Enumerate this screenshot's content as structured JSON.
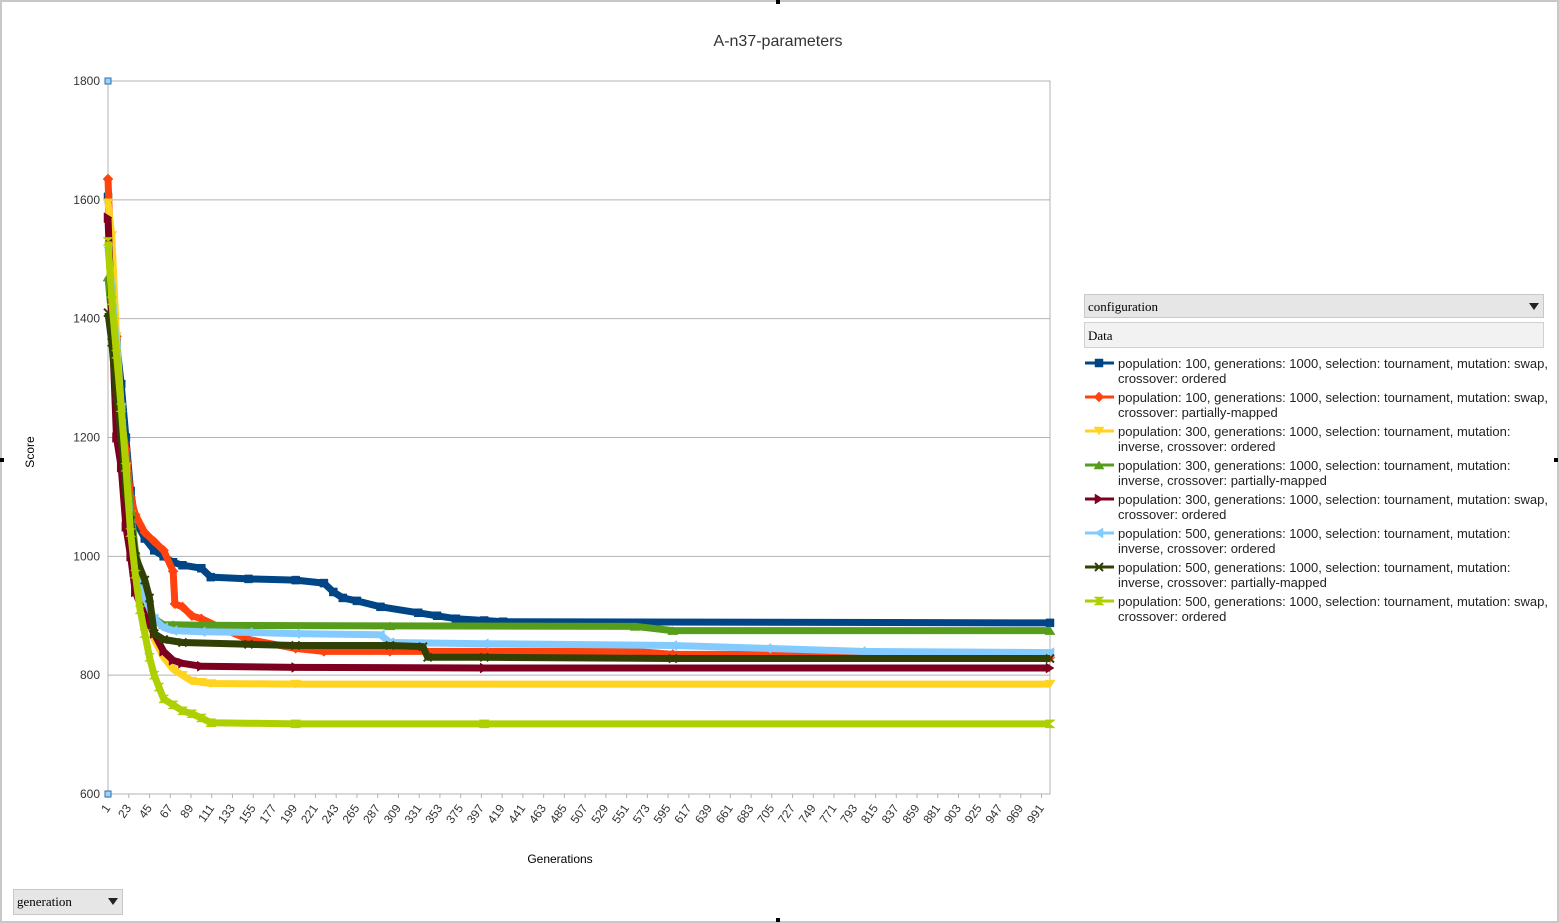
{
  "chart_data": {
    "type": "line",
    "title": "A-n37-parameters",
    "xlabel": "Generations",
    "ylabel": "Score",
    "ylim": [
      600,
      1800
    ],
    "yticks": [
      600,
      800,
      1000,
      1200,
      1400,
      1600,
      1800
    ],
    "xlim": [
      1,
      1000
    ],
    "xticks": [
      1,
      23,
      45,
      67,
      89,
      111,
      133,
      155,
      177,
      199,
      221,
      243,
      265,
      287,
      309,
      331,
      353,
      375,
      397,
      419,
      441,
      463,
      485,
      507,
      529,
      551,
      573,
      595,
      617,
      639,
      661,
      683,
      705,
      727,
      749,
      771,
      793,
      815,
      837,
      859,
      881,
      903,
      925,
      947,
      969,
      991
    ],
    "grid": true,
    "legend_position": "right",
    "series": [
      {
        "name": "population: 100, generations: 1000, selection: tournament, mutation: swap, crossover: ordered",
        "color": "#004586",
        "marker": "square",
        "x": [
          1,
          5,
          10,
          15,
          20,
          25,
          30,
          40,
          50,
          60,
          70,
          80,
          100,
          110,
          150,
          200,
          230,
          240,
          250,
          265,
          290,
          330,
          350,
          370,
          400,
          420,
          1000
        ],
        "y": [
          1605,
          1480,
          1360,
          1290,
          1200,
          1110,
          1060,
          1030,
          1010,
          1000,
          990,
          985,
          980,
          965,
          962,
          960,
          955,
          940,
          930,
          925,
          915,
          905,
          900,
          895,
          892,
          890,
          888
        ]
      },
      {
        "name": "population: 100, generations: 1000, selection: tournament, mutation: swap, crossover: partially-mapped",
        "color": "#ff420e",
        "marker": "diamond",
        "x": [
          1,
          5,
          10,
          15,
          20,
          25,
          30,
          40,
          50,
          60,
          70,
          72,
          80,
          90,
          100,
          120,
          150,
          200,
          230,
          300,
          560,
          600,
          700,
          800,
          1000
        ],
        "y": [
          1635,
          1460,
          1370,
          1230,
          1180,
          1100,
          1070,
          1040,
          1025,
          1010,
          975,
          920,
          915,
          900,
          895,
          880,
          860,
          845,
          840,
          840,
          840,
          835,
          835,
          832,
          830
        ]
      },
      {
        "name": "population: 300, generations: 1000, selection: tournament, mutation: inverse, crossover: ordered",
        "color": "#ffd320",
        "marker": "triangle-down",
        "x": [
          1,
          5,
          10,
          15,
          20,
          25,
          30,
          40,
          50,
          60,
          70,
          80,
          90,
          100,
          110,
          200,
          1000
        ],
        "y": [
          1595,
          1540,
          1370,
          1250,
          1150,
          1070,
          990,
          920,
          860,
          830,
          810,
          800,
          790,
          788,
          786,
          785,
          785
        ]
      },
      {
        "name": "population: 300, generations: 1000, selection: tournament, mutation: inverse, crossover: partially-mapped",
        "color": "#579d1c",
        "marker": "triangle-up",
        "x": [
          1,
          5,
          10,
          15,
          20,
          25,
          30,
          40,
          45,
          50,
          55,
          60,
          70,
          100,
          300,
          560,
          600,
          1000
        ],
        "y": [
          1470,
          1400,
          1320,
          1230,
          1150,
          1080,
          1010,
          930,
          910,
          895,
          890,
          885,
          885,
          884,
          883,
          882,
          875,
          875
        ]
      },
      {
        "name": "population: 300, generations: 1000, selection: tournament, mutation: swap, crossover: ordered",
        "color": "#7e0021",
        "marker": "triangle-right",
        "x": [
          1,
          5,
          10,
          15,
          20,
          25,
          30,
          40,
          50,
          60,
          70,
          80,
          100,
          200,
          400,
          1000
        ],
        "y": [
          1570,
          1400,
          1200,
          1150,
          1050,
          1000,
          940,
          900,
          870,
          840,
          825,
          820,
          815,
          813,
          812,
          812
        ]
      },
      {
        "name": "population: 500, generations: 1000, selection: tournament, mutation: inverse, crossover: ordered",
        "color": "#83caff",
        "marker": "triangle-left",
        "x": [
          1,
          5,
          10,
          15,
          20,
          25,
          30,
          40,
          50,
          60,
          70,
          100,
          150,
          200,
          290,
          300,
          400,
          600,
          700,
          800,
          1000
        ],
        "y": [
          1520,
          1450,
          1350,
          1250,
          1150,
          1050,
          990,
          930,
          895,
          880,
          875,
          873,
          872,
          870,
          868,
          855,
          853,
          850,
          845,
          840,
          838
        ]
      },
      {
        "name": "population: 500, generations: 1000, selection: tournament, mutation: inverse, crossover: partially-mapped",
        "color": "#314004",
        "marker": "x",
        "x": [
          1,
          5,
          10,
          15,
          20,
          25,
          30,
          40,
          45,
          50,
          60,
          80,
          150,
          200,
          300,
          335,
          340,
          400,
          600,
          1000
        ],
        "y": [
          1410,
          1360,
          1270,
          1200,
          1110,
          1060,
          1000,
          960,
          930,
          870,
          860,
          855,
          852,
          850,
          850,
          848,
          830,
          830,
          828,
          828
        ]
      },
      {
        "name": "population: 500, generations: 1000, selection: tournament, mutation: swap, crossover: ordered",
        "color": "#aecf00",
        "marker": "hourglass",
        "x": [
          1,
          5,
          10,
          15,
          20,
          25,
          30,
          35,
          40,
          45,
          50,
          55,
          60,
          70,
          80,
          90,
          100,
          110,
          200,
          400,
          1000
        ],
        "y": [
          1530,
          1430,
          1340,
          1250,
          1150,
          1040,
          970,
          910,
          870,
          830,
          800,
          780,
          760,
          750,
          740,
          735,
          728,
          720,
          718,
          718,
          718
        ]
      }
    ]
  },
  "legend": {
    "dropdown_label": "configuration",
    "data_label": "Data"
  },
  "bottom_dropdown": {
    "label": "generation"
  }
}
